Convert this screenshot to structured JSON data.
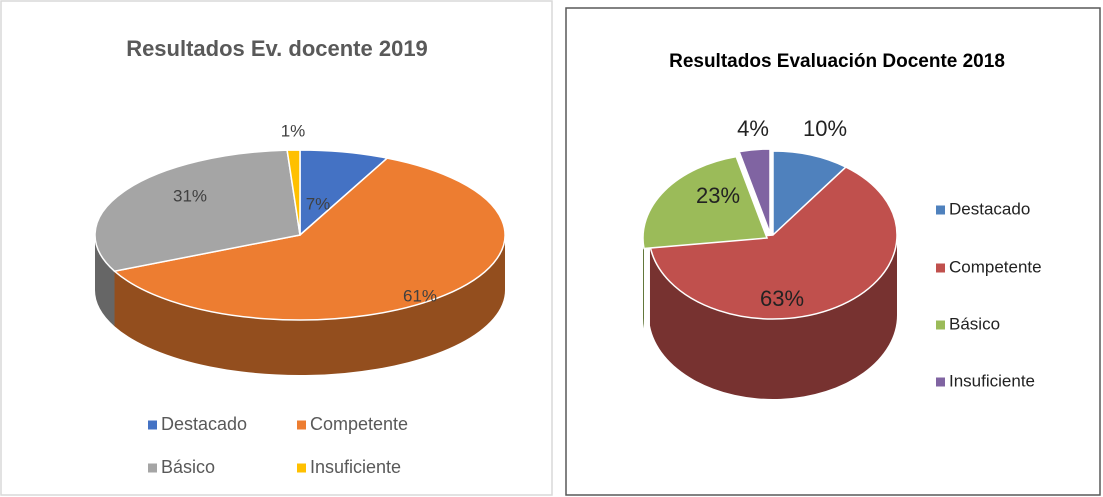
{
  "chart_data": [
    {
      "type": "pie",
      "title": "Resultados Ev. docente 2019",
      "categories": [
        "Destacado",
        "Competente",
        "Básico",
        "Insuficiente"
      ],
      "values": [
        7,
        61,
        31,
        1
      ],
      "value_labels": [
        "7%",
        "61%",
        "31%",
        "1%"
      ],
      "colors": [
        "#4472c4",
        "#ed7d31",
        "#a5a5a5",
        "#ffc000"
      ],
      "legend": "bottom"
    },
    {
      "type": "pie",
      "title": "Resultados Evaluación Docente 2018",
      "categories": [
        "Destacado",
        "Competente",
        "Básico",
        "Insuficiente"
      ],
      "values": [
        10,
        63,
        23,
        4
      ],
      "value_labels": [
        "10%",
        "63%",
        "23%",
        "4%"
      ],
      "colors": [
        "#4f81bd",
        "#c0504d",
        "#9bbb59",
        "#8064a2"
      ],
      "legend": "right"
    }
  ]
}
